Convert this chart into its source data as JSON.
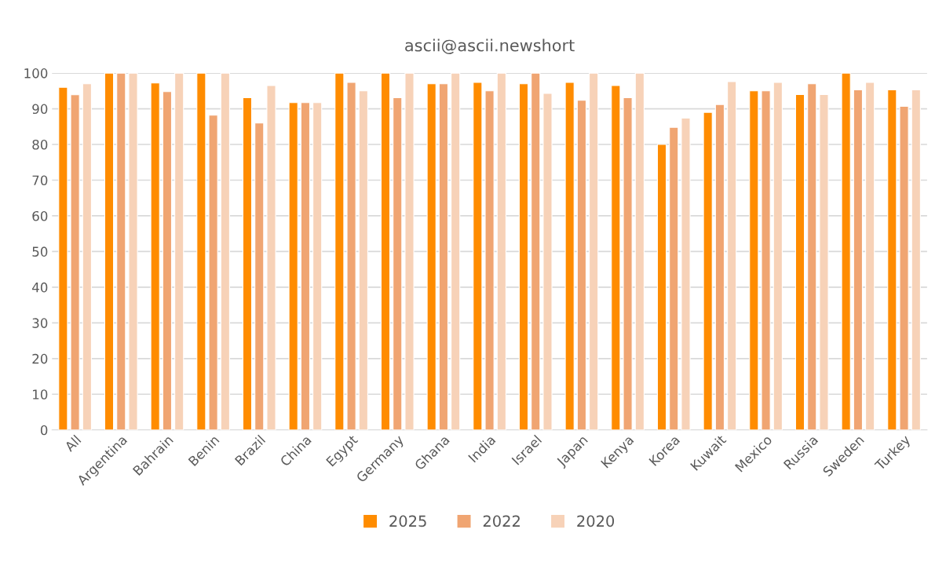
{
  "chart_data": {
    "type": "bar",
    "title": "ascii@ascii.newshort",
    "categories": [
      "All",
      "Argentina",
      "Bahrain",
      "Benin",
      "Brazil",
      "China",
      "Egypt",
      "Germany",
      "Ghana",
      "India",
      "Israel",
      "Japan",
      "Kenya",
      "Korea",
      "Kuwait",
      "Mexico",
      "Russia",
      "Sweden",
      "Turkey"
    ],
    "series": [
      {
        "name": "2025",
        "color": "#ff8c00",
        "values": [
          96,
          100,
          97.2,
          100,
          93.1,
          91.7,
          100,
          100,
          97,
          97.4,
          97,
          97.4,
          96.5,
          80,
          89,
          95,
          94,
          100,
          95.3
        ]
      },
      {
        "name": "2022",
        "color": "#f0a572",
        "values": [
          93.9,
          100,
          94.8,
          88.2,
          86,
          91.7,
          97.4,
          93.1,
          97,
          95,
          100,
          92.4,
          93.1,
          84.8,
          91.2,
          95,
          97,
          95.3,
          90.7
        ]
      },
      {
        "name": "2020",
        "color": "#f7d2b8",
        "values": [
          97,
          100,
          100,
          100,
          96.5,
          91.7,
          95,
          100,
          100,
          100,
          94.3,
          100,
          100,
          87.4,
          97.6,
          97.4,
          94,
          97.4,
          95.3
        ]
      }
    ],
    "ylim": [
      0,
      100
    ],
    "yticks": [
      0,
      10,
      20,
      30,
      40,
      50,
      60,
      70,
      80,
      90,
      100
    ],
    "grid": "y",
    "legend": "bottom"
  }
}
